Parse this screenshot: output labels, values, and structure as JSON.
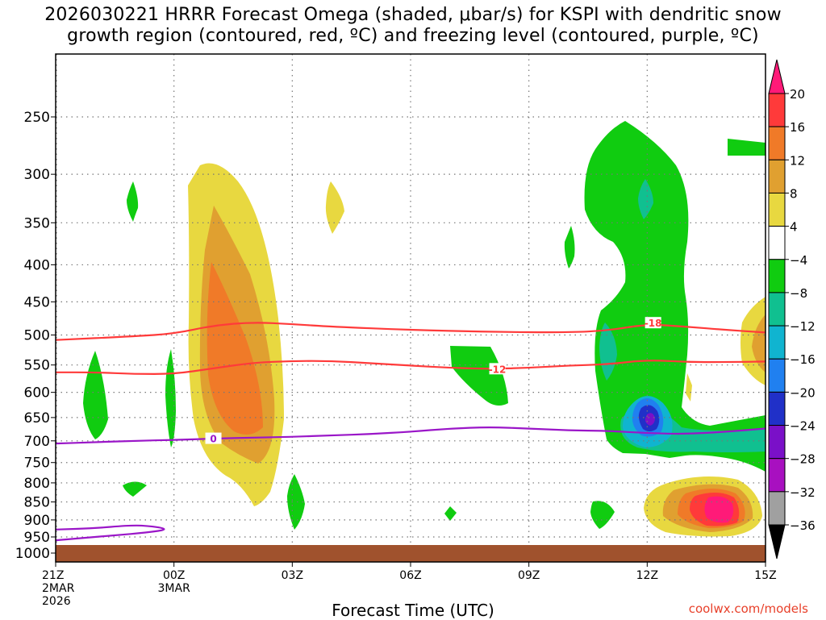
{
  "chart_data": {
    "type": "time-height contour",
    "title_line1": "2026030221 HRRR Forecast Omega (shaded, μbar/s) for KSPI with dendritic snow",
    "title_line2": "growth region (contoured, red, ºC) and freezing level (contoured, purple, ºC)",
    "xlabel": "Forecast Time (UTC)",
    "ylabel": "",
    "credit": "coolwx.com/models",
    "x_range_hours": [
      0,
      18
    ],
    "y_range_mb": [
      1000,
      200
    ],
    "y_ticks": [
      250,
      300,
      350,
      400,
      450,
      500,
      550,
      600,
      650,
      700,
      750,
      800,
      850,
      900,
      950,
      1000
    ],
    "x_ticks": [
      {
        "hour": 0,
        "lines": [
          "21Z",
          "2MAR",
          "2026"
        ]
      },
      {
        "hour": 3,
        "lines": [
          "00Z",
          "3MAR"
        ]
      },
      {
        "hour": 6,
        "lines": [
          "03Z"
        ]
      },
      {
        "hour": 9,
        "lines": [
          "06Z"
        ]
      },
      {
        "hour": 12,
        "lines": [
          "09Z"
        ]
      },
      {
        "hour": 15,
        "lines": [
          "12Z"
        ]
      },
      {
        "hour": 18,
        "lines": [
          "15Z"
        ]
      }
    ],
    "colorbar": {
      "levels": [
        20,
        16,
        12,
        8,
        4,
        -4,
        -8,
        -12,
        -16,
        -20,
        -24,
        -28,
        -32,
        -36
      ],
      "colors": [
        "#ff1a78",
        "#ff3a3a",
        "#f07a28",
        "#e0a030",
        "#e8d840",
        "#ffffff",
        "#10cc10",
        "#10c090",
        "#10b4d0",
        "#2080f0",
        "#2030c8",
        "#7a10c8",
        "#a810c0",
        "#a0a0a0",
        "#000000"
      ]
    },
    "contours": [
      {
        "name": "dgz-minus-18",
        "label": "-18",
        "color": "#ff3a3a",
        "points": [
          [
            0,
            508
          ],
          [
            2,
            502
          ],
          [
            3,
            498
          ],
          [
            4,
            485
          ],
          [
            5,
            480
          ],
          [
            6,
            483
          ],
          [
            7,
            487
          ],
          [
            9,
            492
          ],
          [
            11,
            495
          ],
          [
            13,
            496
          ],
          [
            14,
            493
          ],
          [
            15,
            483
          ],
          [
            16,
            487
          ],
          [
            17,
            492
          ],
          [
            18,
            496
          ]
        ],
        "label_hour": 15.15,
        "label_mb": 482
      },
      {
        "name": "dgz-minus-12",
        "label": "-12",
        "color": "#ff3a3a",
        "points": [
          [
            0,
            563
          ],
          [
            1,
            563
          ],
          [
            2,
            566
          ],
          [
            3,
            566
          ],
          [
            4,
            556
          ],
          [
            5,
            546
          ],
          [
            6,
            543
          ],
          [
            7,
            543
          ],
          [
            8,
            547
          ],
          [
            9,
            551
          ],
          [
            10,
            555
          ],
          [
            11,
            557
          ],
          [
            12,
            555
          ],
          [
            13,
            551
          ],
          [
            14,
            549
          ],
          [
            15,
            541
          ],
          [
            16,
            545
          ],
          [
            17,
            545
          ],
          [
            18,
            544
          ]
        ],
        "label_hour": 11.2,
        "label_mb": 558
      },
      {
        "name": "freezing-level",
        "label": "0",
        "color": "#9a16c8",
        "points": [
          [
            0,
            706
          ],
          [
            1,
            703
          ],
          [
            2,
            700
          ],
          [
            3,
            698
          ],
          [
            4,
            695
          ],
          [
            5,
            693
          ],
          [
            6,
            691
          ],
          [
            7,
            688
          ],
          [
            8,
            685
          ],
          [
            9,
            680
          ],
          [
            10,
            673
          ],
          [
            11,
            670
          ],
          [
            12,
            673
          ],
          [
            13,
            677
          ],
          [
            14,
            678
          ],
          [
            15,
            683
          ],
          [
            16,
            685
          ],
          [
            17,
            680
          ],
          [
            18,
            673
          ]
        ],
        "label_hour": 4.0,
        "label_mb": 696
      },
      {
        "name": "freezing-level-low",
        "label": "",
        "color": "#9a16c8",
        "points": [
          [
            0,
            928
          ],
          [
            1,
            924
          ],
          [
            1.8,
            916
          ],
          [
            2.3,
            916
          ],
          [
            2.9,
            927
          ],
          [
            2.3,
            937
          ],
          [
            1.5,
            945
          ],
          [
            0.5,
            955
          ],
          [
            0,
            960
          ]
        ],
        "label_hour": 0,
        "label_mb": 0
      }
    ],
    "shaded_regions": [
      {
        "level_min": 4,
        "label": "upward-yellow",
        "hour_range": [
          3.4,
          5.4
        ],
        "mb_range": [
          880,
          290
        ]
      },
      {
        "level_min": 8,
        "label": "upward-gold",
        "hour_range": [
          3.5,
          5.0
        ],
        "mb_range": [
          770,
          330
        ]
      },
      {
        "level_min": 12,
        "label": "upward-orange",
        "hour_range": [
          3.8,
          4.8
        ],
        "mb_range": [
          740,
          400
        ]
      },
      {
        "level_min": 16,
        "label": "upward-red-low",
        "hour_range": [
          15.9,
          17.7
        ],
        "mb_range": [
          945,
          855
        ]
      },
      {
        "level_min": 20,
        "label": "upward-pink-low",
        "hour_range": [
          16.7,
          17.4
        ],
        "mb_range": [
          915,
          860
        ]
      },
      {
        "level_min": -8,
        "label": "downward-green-top",
        "hour_range": [
          14.3,
          17.0
        ],
        "mb_range": [
          560,
          255
        ]
      },
      {
        "level_min": -24,
        "label": "downward-blue-core",
        "hour_range": [
          14.7,
          15.4
        ],
        "mb_range": [
          700,
          640
        ]
      },
      {
        "level_min": -12,
        "label": "downward-teal-band",
        "hour_range": [
          15.0,
          18.0
        ],
        "mb_range": [
          750,
          690
        ]
      }
    ]
  }
}
